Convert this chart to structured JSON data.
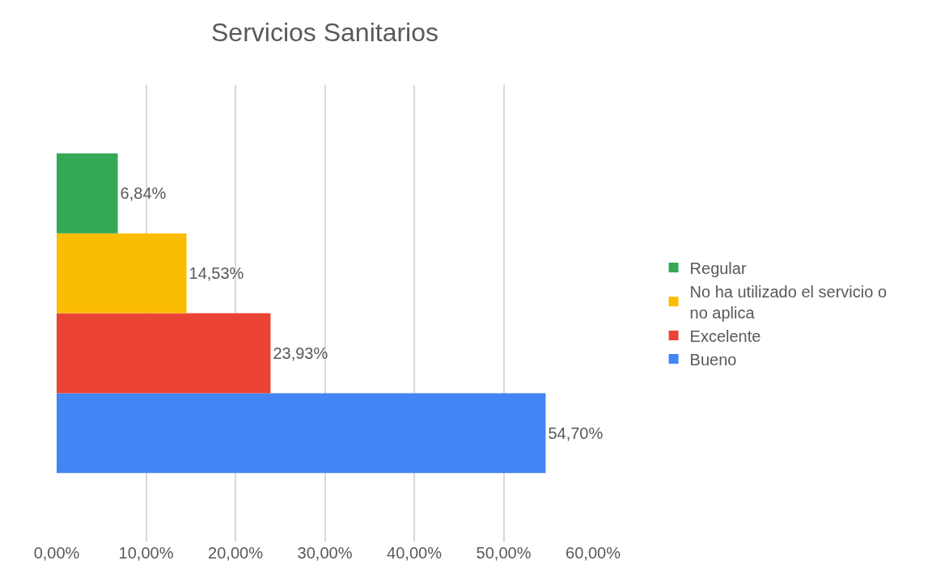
{
  "chart_data": {
    "type": "bar",
    "orientation": "horizontal",
    "title": "Servicios Sanitarios",
    "categories": [
      null
    ],
    "series": [
      {
        "name": "Bueno",
        "color": "#4285f4",
        "values": [
          54.7
        ],
        "value_labels": [
          "54,70%"
        ]
      },
      {
        "name": "Excelente",
        "color": "#ea4335",
        "values": [
          23.93
        ],
        "value_labels": [
          "23,93%"
        ]
      },
      {
        "name": "No ha utilizado el servicio o no aplica",
        "color": "#fbbc04",
        "values": [
          14.53
        ],
        "value_labels": [
          "14,53%"
        ]
      },
      {
        "name": "Regular",
        "color": "#34a853",
        "values": [
          6.84
        ],
        "value_labels": [
          "6,84%"
        ]
      }
    ],
    "xlim": [
      0,
      60
    ],
    "xticks": [
      {
        "value": 0,
        "label": "0,00%"
      },
      {
        "value": 10,
        "label": "10,00%"
      },
      {
        "value": 20,
        "label": "20,00%"
      },
      {
        "value": 30,
        "label": "30,00%"
      },
      {
        "value": 40,
        "label": "40,00%"
      },
      {
        "value": 50,
        "label": "50,00%"
      },
      {
        "value": 60,
        "label": "60,00%"
      }
    ],
    "tick_labels": "x",
    "grid": "x",
    "legend": "right"
  }
}
